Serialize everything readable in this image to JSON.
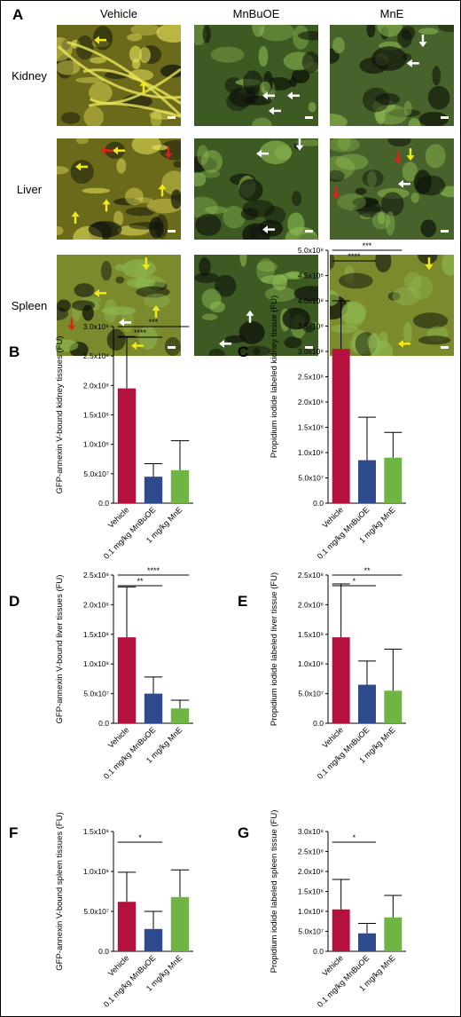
{
  "panel_a": {
    "letter": "A",
    "columns": [
      "Vehicle",
      "MnBuOE",
      "MnE"
    ],
    "rows": [
      "Kidney",
      "Liver",
      "Spleen"
    ],
    "tint_colors": {
      "vehicle": "#6b6a1a",
      "vehicle_signal": "#e8e35a",
      "mnbuoe": "#3c5a22",
      "mne": "#47622a",
      "spleen": "#7c8a2e"
    },
    "arrow_colors": {
      "yellow": "#f2e816",
      "white": "#ffffff",
      "red": "#d8261c"
    }
  },
  "charts": [
    {
      "panel": "B",
      "type": "bar",
      "ylabel": "GFP-annexin V-bound kidney tissues (FU)",
      "categories": [
        "Vehicle",
        "0.1 mg/kg MnBuOE",
        "1 mg/kg MnE"
      ],
      "values": [
        195000000.0,
        45000000.0,
        56000000.0
      ],
      "errors": [
        88000000.0,
        22000000.0,
        50000000.0
      ],
      "ylim": [
        0,
        300000000.0
      ],
      "yticks": [
        0,
        50000000.0,
        100000000.0,
        150000000.0,
        200000000.0,
        250000000.0,
        300000000.0
      ],
      "yticklabels": [
        "0.0",
        "5.0x10⁷",
        "1.0x10⁸",
        "1.5x10⁸",
        "2.0x10⁸",
        "2.5x10⁸",
        "3.0x10⁸"
      ],
      "colors": [
        "#b5113f",
        "#2c4a8c",
        "#6fb544"
      ],
      "brackets": [
        {
          "from": 0,
          "to": 1,
          "label": "****"
        },
        {
          "from": 0,
          "to": 2,
          "label": "***"
        }
      ]
    },
    {
      "panel": "C",
      "type": "bar",
      "ylabel": "Propidium iodide labeled kidney tissue (FU)",
      "categories": [
        "Vehicle",
        "0.1 mg/kg MnBuOE",
        "1 mg/kg MnE"
      ],
      "values": [
        305000000.0,
        85000000.0,
        90000000.0
      ],
      "errors": [
        95000000.0,
        85000000.0,
        50000000.0
      ],
      "ylim": [
        0,
        500000000.0
      ],
      "yticks": [
        0,
        50000000.0,
        100000000.0,
        150000000.0,
        200000000.0,
        250000000.0,
        300000000.0,
        350000000.0,
        400000000.0,
        450000000.0,
        500000000.0
      ],
      "yticklabels": [
        "0.0",
        "5.0x10⁷",
        "1.0x10⁸",
        "1.5x10⁸",
        "2.0x10⁸",
        "2.5x10⁸",
        "3.0x10⁸",
        "3.5x10⁸",
        "4.0x10⁸",
        "4.5x10⁸",
        "5.0x10⁸"
      ],
      "colors": [
        "#b5113f",
        "#2c4a8c",
        "#6fb544"
      ],
      "brackets": [
        {
          "from": 0,
          "to": 1,
          "label": "****"
        },
        {
          "from": 0,
          "to": 2,
          "label": "***"
        }
      ]
    },
    {
      "panel": "D",
      "type": "bar",
      "ylabel": "GFP-annexin V-bound liver tissues (FU)",
      "categories": [
        "Vehicle",
        "0.1 mg/kg MnBuOE",
        "1 mg/kg MnE"
      ],
      "values": [
        145000000.0,
        50000000.0,
        25000000.0
      ],
      "errors": [
        85000000.0,
        28000000.0,
        14000000.0
      ],
      "ylim": [
        0,
        250000000.0
      ],
      "yticks": [
        0,
        50000000.0,
        100000000.0,
        150000000.0,
        200000000.0,
        250000000.0
      ],
      "yticklabels": [
        "0.0",
        "5.0x10⁷",
        "1.0x10⁸",
        "1.5x10⁸",
        "2.0x10⁸",
        "2.5x10⁸"
      ],
      "colors": [
        "#b5113f",
        "#2c4a8c",
        "#6fb544"
      ],
      "brackets": [
        {
          "from": 0,
          "to": 1,
          "label": "**"
        },
        {
          "from": 0,
          "to": 2,
          "label": "****"
        }
      ]
    },
    {
      "panel": "E",
      "type": "bar",
      "ylabel": "Propidium iodide labeled liver tissue (FU)",
      "categories": [
        "Vehicle",
        "0.1 mg/kg MnBuOE",
        "1 mg/kg MnE"
      ],
      "values": [
        145000000.0,
        65000000.0,
        55000000.0
      ],
      "errors": [
        90000000.0,
        40000000.0,
        70000000.0
      ],
      "ylim": [
        0,
        250000000.0
      ],
      "yticks": [
        0,
        50000000.0,
        100000000.0,
        150000000.0,
        200000000.0,
        250000000.0
      ],
      "yticklabels": [
        "0.0",
        "5.0x10⁷",
        "1.0x10⁸",
        "1.5x10⁸",
        "2.0x10⁸",
        "2.5x10⁸"
      ],
      "colors": [
        "#b5113f",
        "#2c4a8c",
        "#6fb544"
      ],
      "brackets": [
        {
          "from": 0,
          "to": 1,
          "label": "*"
        },
        {
          "from": 0,
          "to": 2,
          "label": "**"
        }
      ]
    },
    {
      "panel": "F",
      "type": "bar",
      "ylabel": "GFP-annexin V-bound spleen tissues (FU)",
      "categories": [
        "Vehicle",
        "0.1 mg/kg MnBuOE",
        "1 mg/kg MnE"
      ],
      "values": [
        62000000.0,
        28000000.0,
        68000000.0
      ],
      "errors": [
        37000000.0,
        22000000.0,
        34000000.0
      ],
      "ylim": [
        0,
        150000000.0
      ],
      "yticks": [
        0,
        50000000.0,
        100000000.0,
        150000000.0
      ],
      "yticklabels": [
        "0.0",
        "5.0x10⁷",
        "1.0x10⁸",
        "1.5x10⁸"
      ],
      "colors": [
        "#b5113f",
        "#2c4a8c",
        "#6fb544"
      ],
      "brackets": [
        {
          "from": 0,
          "to": 1,
          "label": "*"
        }
      ]
    },
    {
      "panel": "G",
      "type": "bar",
      "ylabel": "Propidium iodide labeled spleen tissue (FU)",
      "categories": [
        "Vehicle",
        "0.1 mg/kg MnBuOE",
        "1 mg/kg MnE"
      ],
      "values": [
        105000000.0,
        45000000.0,
        85000000.0
      ],
      "errors": [
        75000000.0,
        25000000.0,
        55000000.0
      ],
      "ylim": [
        0,
        300000000.0
      ],
      "yticks": [
        0,
        50000000.0,
        100000000.0,
        150000000.0,
        200000000.0,
        250000000.0,
        300000000.0
      ],
      "yticklabels": [
        "0.0",
        "5.0x10⁷",
        "1.0x10⁸",
        "1.5x10⁸",
        "2.0x10⁸",
        "2.5x10⁸",
        "3.0x10⁸"
      ],
      "colors": [
        "#b5113f",
        "#2c4a8c",
        "#6fb544"
      ],
      "brackets": [
        {
          "from": 0,
          "to": 1,
          "label": "*"
        }
      ]
    }
  ]
}
